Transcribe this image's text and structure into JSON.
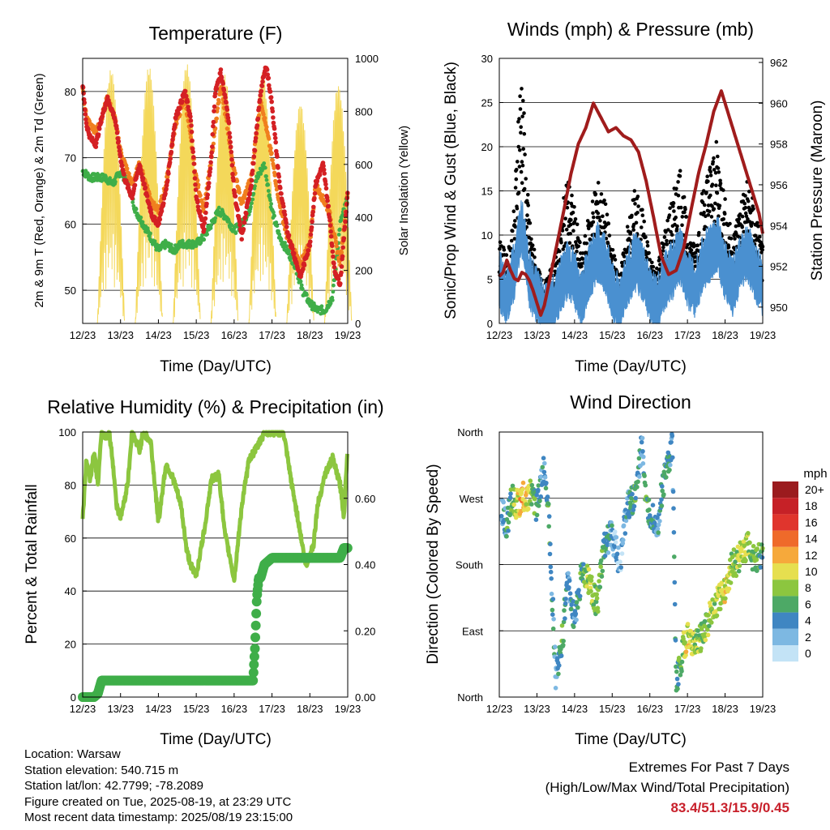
{
  "panels": {
    "temperature": {
      "title": "Temperature (F)",
      "ylabel_left": "2m & 9m T (Red, Orange) & 2m Td (Green)",
      "ylabel_right": "Solar Insolation (Yellow)",
      "xlabel": "Time (Day/UTC)"
    },
    "winds": {
      "title": "Winds (mph) & Pressure (mb)",
      "ylabel_left": "Sonic/Prop Wind & Gust (Blue, Black)",
      "ylabel_right": "Station Pressure (Maroon)",
      "xlabel": "Time (Day/UTC)"
    },
    "humidity": {
      "title": "Relative Humidity (%) & Precipitation (in)",
      "ylabel_left": "Percent & Total Rainfall",
      "xlabel": "Time (Day/UTC)"
    },
    "direction": {
      "title": "Wind Direction",
      "ylabel_left": "Direction (Colored By Speed)",
      "xlabel": "Time (Day/UTC)",
      "colorbar_title": "mph",
      "colorbar_labels": [
        "20+",
        "18",
        "16",
        "14",
        "12",
        "10",
        "8",
        "6",
        "4",
        "2",
        "0"
      ],
      "colorbar_colors": [
        "#9b1b1e",
        "#c62127",
        "#e0352d",
        "#ef6a2a",
        "#f6a93b",
        "#e6df4f",
        "#8cc63f",
        "#4da966",
        "#3f86c2",
        "#7db8e2",
        "#c3e3f6"
      ]
    }
  },
  "footer": {
    "location": "Location: Warsaw",
    "elevation": "Station elevation: 540.715 m",
    "latlon": "Station lat/lon: 42.7799; -78.2089",
    "created": "Figure created on Tue, 2025-08-19, at 23:29 UTC",
    "recent": "Most recent data timestamp: 2025/08/19 23:15:00"
  },
  "extremes": {
    "line1": "Extremes For Past 7 Days",
    "line2": "(High/Low/Max Wind/Total Precipitation)",
    "values": "83.4/51.3/15.9/0.45"
  },
  "colors": {
    "temp2m": "#d42024",
    "temp9m": "#f07f1e",
    "dewpoint": "#3fae49",
    "solar": "#f4d85a",
    "wind": "#4a90d0",
    "gust": "#000000",
    "pressure": "#a01c1c",
    "rh": "#8cc63f",
    "precip": "#3fae49"
  },
  "chart_data": [
    {
      "type": "line",
      "title": "Temperature (F)",
      "xlabel": "Time (Day/UTC)",
      "x_ticks": [
        "12/23",
        "13/23",
        "14/23",
        "15/23",
        "16/23",
        "17/23",
        "18/23",
        "19/23"
      ],
      "xlim": [
        12.0,
        19.0
      ],
      "ylim": [
        45,
        85
      ],
      "y_ticks": [
        50,
        60,
        70,
        80
      ],
      "y2lim": [
        0,
        1000
      ],
      "y2_ticks": [
        0,
        200,
        400,
        600,
        800,
        1000
      ],
      "series": [
        {
          "name": "2m T",
          "axis": "left",
          "x": [
            12.0,
            12.1,
            12.2,
            12.35,
            12.5,
            12.65,
            12.85,
            13.0,
            13.1,
            13.3,
            13.5,
            13.7,
            13.85,
            14.0,
            14.2,
            14.45,
            14.7,
            14.85,
            15.0,
            15.2,
            15.4,
            15.5,
            15.65,
            15.85,
            16.0,
            16.2,
            16.45,
            16.7,
            16.85,
            17.0,
            17.2,
            17.4,
            17.6,
            17.75,
            18.0,
            18.15,
            18.35,
            18.5,
            18.65,
            18.8,
            19.0
          ],
          "values": [
            81,
            75,
            73,
            72,
            76,
            79,
            76,
            70,
            67,
            64,
            69,
            64,
            61,
            60,
            65,
            76,
            80,
            76,
            64,
            59,
            70,
            80,
            83,
            76,
            65,
            58,
            66,
            80,
            84,
            78,
            66,
            59,
            55,
            52,
            57,
            66,
            69,
            62,
            53,
            51,
            65
          ]
        },
        {
          "name": "9m T",
          "axis": "left",
          "x": [
            12.0,
            12.1,
            12.2,
            12.35,
            12.5,
            12.65,
            12.85,
            13.0,
            13.3,
            13.5,
            13.85,
            14.0,
            14.2,
            14.45,
            14.7,
            15.0,
            15.2,
            15.4,
            15.65,
            16.0,
            16.2,
            16.45,
            16.7,
            17.0,
            17.2,
            17.4,
            17.75,
            18.0,
            18.15,
            18.5,
            18.8,
            19.0
          ],
          "values": [
            80,
            76,
            75,
            74,
            76,
            79,
            76,
            71,
            66,
            69,
            63,
            62,
            66,
            75,
            79,
            67,
            62,
            70,
            81,
            68,
            63,
            67,
            79,
            70,
            63,
            58,
            54,
            57,
            66,
            62,
            54,
            65
          ]
        },
        {
          "name": "2m Td",
          "axis": "left",
          "x": [
            12.0,
            12.2,
            12.4,
            12.6,
            12.8,
            13.0,
            13.2,
            13.4,
            13.6,
            13.8,
            14.0,
            14.2,
            14.4,
            14.6,
            14.8,
            15.0,
            15.2,
            15.4,
            15.6,
            15.8,
            16.0,
            16.2,
            16.4,
            16.6,
            16.8,
            17.0,
            17.2,
            17.4,
            17.6,
            17.8,
            18.0,
            18.2,
            18.4,
            18.6,
            18.8,
            19.0
          ],
          "values": [
            68,
            67,
            67,
            67,
            66,
            68,
            66,
            62,
            60,
            58,
            56,
            57,
            56,
            57,
            57,
            57,
            58,
            60,
            62,
            61,
            59,
            60,
            62,
            67,
            69,
            62,
            58,
            56,
            54,
            50,
            48,
            47,
            47,
            49,
            60,
            64
          ]
        },
        {
          "name": "Solar Insolation",
          "axis": "right",
          "type": "spikes",
          "day_centers": [
            12.75,
            13.75,
            14.75,
            15.75,
            16.75,
            17.75,
            18.75
          ],
          "peaks": [
            960,
            970,
            980,
            940,
            950,
            830,
            900
          ]
        }
      ]
    },
    {
      "type": "scatter",
      "title": "Winds (mph) & Pressure (mb)",
      "xlabel": "Time (Day/UTC)",
      "x_ticks": [
        "12/23",
        "13/23",
        "14/23",
        "15/23",
        "16/23",
        "17/23",
        "18/23",
        "19/23"
      ],
      "xlim": [
        12.0,
        19.0
      ],
      "ylim": [
        0,
        30
      ],
      "y_ticks": [
        0,
        5,
        10,
        15,
        20,
        25,
        30
      ],
      "y2lim": [
        949.2,
        962.2
      ],
      "y2_ticks": [
        950,
        952,
        954,
        956,
        958,
        960,
        962
      ],
      "series": [
        {
          "name": "Sonic/Prop Wind",
          "type": "scatter",
          "x": [
            12.0,
            12.2,
            12.4,
            12.5,
            12.6,
            12.7,
            12.8,
            13.0,
            13.2,
            13.4,
            13.6,
            13.8,
            14.0,
            14.2,
            14.4,
            14.6,
            14.8,
            15.0,
            15.2,
            15.4,
            15.6,
            15.8,
            16.0,
            16.2,
            16.4,
            16.6,
            16.8,
            17.0,
            17.2,
            17.4,
            17.6,
            17.8,
            18.0,
            18.2,
            18.4,
            18.6,
            18.8,
            19.0
          ],
          "values": [
            6,
            4,
            7,
            10,
            12,
            9,
            6,
            4,
            2,
            3,
            5,
            7,
            6,
            4,
            7,
            9,
            8,
            5,
            3,
            6,
            8,
            7,
            4,
            3,
            6,
            7,
            9,
            6,
            5,
            8,
            9,
            10,
            7,
            5,
            8,
            9,
            7,
            5
          ]
        },
        {
          "name": "Gust",
          "type": "scatter",
          "x": [
            12.0,
            12.2,
            12.4,
            12.5,
            12.6,
            12.7,
            12.8,
            13.0,
            13.2,
            13.4,
            13.6,
            13.8,
            14.0,
            14.2,
            14.4,
            14.6,
            14.8,
            15.0,
            15.2,
            15.4,
            15.6,
            15.8,
            16.0,
            16.2,
            16.4,
            16.6,
            16.8,
            17.0,
            17.2,
            17.4,
            17.6,
            17.8,
            18.0,
            18.2,
            18.4,
            18.6,
            18.8,
            19.0
          ],
          "values": [
            9,
            7,
            12,
            23,
            28,
            17,
            11,
            6,
            4,
            6,
            9,
            16,
            12,
            7,
            12,
            15,
            13,
            8,
            5,
            10,
            14,
            12,
            7,
            6,
            10,
            13,
            17,
            10,
            8,
            14,
            17,
            19,
            13,
            9,
            13,
            15,
            12,
            8
          ]
        },
        {
          "name": "Station Pressure",
          "type": "line",
          "axis": "right",
          "x": [
            12.0,
            12.1,
            12.2,
            12.3,
            12.4,
            12.5,
            12.6,
            12.7,
            12.8,
            12.9,
            13.0,
            13.1,
            13.2,
            13.3,
            13.5,
            13.7,
            13.9,
            14.1,
            14.3,
            14.5,
            14.7,
            14.9,
            15.1,
            15.3,
            15.5,
            15.7,
            15.9,
            16.1,
            16.3,
            16.5,
            16.7,
            16.9,
            17.1,
            17.3,
            17.5,
            17.7,
            17.9,
            18.1,
            18.3,
            18.5,
            18.7,
            18.9,
            19.0
          ],
          "values": [
            951.5,
            951.7,
            952.3,
            951.8,
            951.4,
            951.3,
            951.7,
            951.6,
            951.3,
            950.8,
            950.2,
            949.6,
            950.1,
            951.0,
            952.8,
            954.6,
            956.5,
            958.0,
            958.8,
            960.0,
            959.3,
            958.6,
            958.8,
            958.4,
            958.2,
            957.6,
            956.2,
            954.4,
            952.5,
            951.6,
            951.8,
            952.9,
            954.8,
            956.6,
            958.0,
            959.6,
            960.6,
            959.4,
            958.2,
            957.0,
            955.8,
            954.6,
            953.6
          ]
        }
      ]
    },
    {
      "type": "line",
      "title": "Relative Humidity (%) & Precipitation (in)",
      "xlabel": "Time (Day/UTC)",
      "x_ticks": [
        "12/23",
        "13/23",
        "14/23",
        "15/23",
        "16/23",
        "17/23",
        "18/23",
        "19/23"
      ],
      "xlim": [
        12.0,
        19.0
      ],
      "ylim": [
        0,
        100
      ],
      "y_ticks": [
        0,
        20,
        40,
        60,
        80,
        100
      ],
      "y2lim": [
        0,
        0.8
      ],
      "y2_ticks": [
        "0.00",
        "0.20",
        "0.40",
        "0.60"
      ],
      "series": [
        {
          "name": "Relative Humidity",
          "x": [
            12.0,
            12.1,
            12.2,
            12.3,
            12.4,
            12.5,
            12.6,
            12.7,
            12.8,
            12.9,
            13.0,
            13.1,
            13.2,
            13.3,
            13.5,
            13.6,
            13.8,
            14.0,
            14.2,
            14.4,
            14.6,
            14.75,
            14.9,
            15.0,
            15.2,
            15.4,
            15.6,
            15.75,
            15.9,
            16.0,
            16.2,
            16.4,
            16.6,
            16.8,
            17.0,
            17.2,
            17.3,
            17.5,
            17.7,
            17.9,
            18.1,
            18.2,
            18.4,
            18.6,
            18.8,
            18.9,
            19.0
          ],
          "values": [
            67,
            90,
            82,
            93,
            80,
            100,
            98,
            100,
            88,
            72,
            68,
            74,
            82,
            100,
            93,
            100,
            96,
            66,
            88,
            82,
            72,
            55,
            48,
            46,
            62,
            82,
            84,
            62,
            52,
            44,
            72,
            90,
            94,
            100,
            100,
            100,
            100,
            82,
            66,
            49,
            58,
            72,
            84,
            90,
            80,
            68,
            96
          ]
        },
        {
          "name": "Total Rainfall",
          "axis": "right",
          "x": [
            12.0,
            12.3,
            12.4,
            12.5,
            13.0,
            14.0,
            15.0,
            16.0,
            16.5,
            16.55,
            16.6,
            16.65,
            16.7,
            16.8,
            17.0,
            17.5,
            18.0,
            18.5,
            18.8,
            18.9,
            19.0
          ],
          "values": [
            0.0,
            0.0,
            0.01,
            0.05,
            0.05,
            0.05,
            0.05,
            0.05,
            0.05,
            0.15,
            0.3,
            0.36,
            0.36,
            0.4,
            0.42,
            0.42,
            0.42,
            0.42,
            0.42,
            0.45,
            0.45
          ]
        }
      ]
    },
    {
      "type": "scatter",
      "title": "Wind Direction",
      "xlabel": "Time (Day/UTC)",
      "x_ticks": [
        "12/23",
        "13/23",
        "14/23",
        "15/23",
        "16/23",
        "17/23",
        "18/23",
        "19/23"
      ],
      "xlim": [
        12.0,
        19.0
      ],
      "y_ticks": [
        "North",
        "East",
        "South",
        "West",
        "North"
      ],
      "ylim": [
        0,
        360
      ],
      "series": [
        {
          "name": "Direction",
          "x": [
            12.1,
            12.2,
            12.3,
            12.4,
            12.5,
            12.6,
            12.7,
            12.8,
            12.9,
            13.0,
            13.1,
            13.2,
            13.3,
            13.5,
            13.6,
            13.7,
            13.8,
            14.0,
            14.2,
            14.4,
            14.6,
            14.8,
            15.0,
            15.2,
            15.4,
            15.6,
            15.7,
            15.8,
            15.9,
            16.0,
            16.1,
            16.2,
            16.3,
            16.4,
            16.5,
            16.6,
            16.7,
            16.8,
            16.9,
            17.0,
            17.2,
            17.4,
            17.6,
            17.8,
            18.0,
            18.2,
            18.4,
            18.6,
            18.8,
            19.0
          ],
          "values": [
            255,
            225,
            275,
            265,
            260,
            275,
            268,
            275,
            270,
            258,
            290,
            310,
            265,
            30,
            50,
            90,
            160,
            105,
            170,
            155,
            125,
            210,
            220,
            180,
            260,
            270,
            300,
            350,
            255,
            250,
            245,
            230,
            270,
            300,
            320,
            340,
            20,
            40,
            70,
            80,
            70,
            85,
            110,
            130,
            150,
            180,
            190,
            210,
            180,
            200
          ],
          "speeds": [
            3,
            5,
            6,
            8,
            10,
            12,
            11,
            9,
            7,
            5,
            4,
            3,
            6,
            3,
            5,
            7,
            4,
            4,
            6,
            9,
            7,
            5,
            3,
            2,
            4,
            6,
            5,
            3,
            7,
            5,
            4,
            3,
            5,
            6,
            4,
            3,
            5,
            7,
            9,
            10,
            8,
            7,
            8,
            9,
            10,
            8,
            9,
            8,
            7,
            6
          ]
        }
      ]
    }
  ]
}
